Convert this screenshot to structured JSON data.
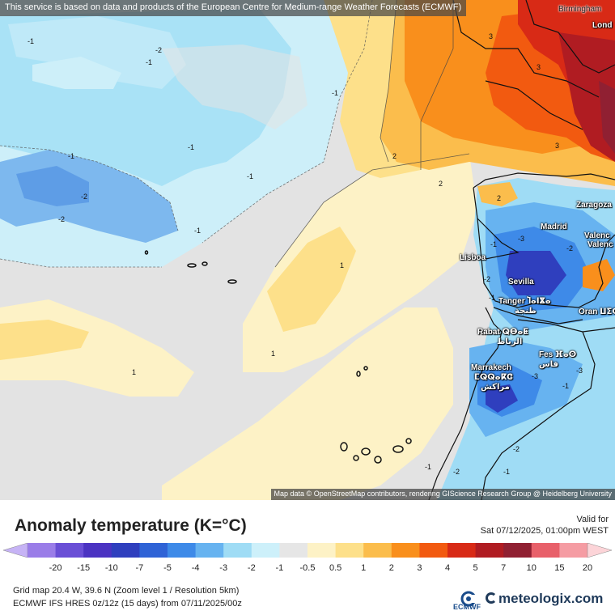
{
  "map": {
    "banner": "This service is based on data and products of the European Centre for Medium-range Weather Forecasts (ECMWF)",
    "attribution": "Map data © OpenStreetMap contributors, rendering GIScience Research Group @ Heidelberg University",
    "cities": [
      {
        "name": "Birmingham",
        "style": "dark"
      },
      {
        "name": "Lond",
        "style": "light"
      },
      {
        "name": "Zaragoza",
        "style": "light"
      },
      {
        "name": "Madrid",
        "style": "light"
      },
      {
        "name": "Valenc",
        "style": "light"
      },
      {
        "name": "Valenc",
        "style": "light"
      },
      {
        "name": "Lisboa",
        "style": "light"
      },
      {
        "name": "Sevilla",
        "style": "light"
      },
      {
        "name": "Tanger Ⴈⴰⵏⴵⴰ",
        "style": "light"
      },
      {
        "name": "طنجة",
        "style": "light"
      },
      {
        "name": "Oran ⵡⵉⵀⵔⴰⵏ",
        "style": "light"
      },
      {
        "name": "Rabat ⵕⴱⴰⵟ",
        "style": "light"
      },
      {
        "name": "الرباط",
        "style": "light"
      },
      {
        "name": "Fes ⴼⴰⵙ",
        "style": "light"
      },
      {
        "name": "فاس",
        "style": "light"
      },
      {
        "name": "Marrakech",
        "style": "light"
      },
      {
        "name": "ⵎⵕⵕⴰⴽⵛ",
        "style": "light"
      },
      {
        "name": "مراكش",
        "style": "light"
      }
    ],
    "contour_labels": [
      "-1",
      "-2",
      "-1",
      "-1",
      "-1",
      "-1",
      "-1",
      "-2",
      "-2",
      "-1",
      "1",
      "1",
      "2",
      "2",
      "3",
      "3",
      "3",
      "2",
      "1",
      "-1",
      "-2",
      "-3",
      "-2",
      "-1",
      "-3",
      "-3",
      "-2",
      "-1",
      "-2",
      "-1",
      "-1"
    ]
  },
  "legend": {
    "title": "Anomaly temperature (K=°C)",
    "valid_label": "Valid for",
    "valid_value": "Sat 07/12/2025, 01:00pm WEST",
    "ticks": [
      "-20",
      "-15",
      "-10",
      "-7",
      "-5",
      "-4",
      "-3",
      "-2",
      "-1",
      "-0.5",
      "0.5",
      "1",
      "2",
      "3",
      "4",
      "5",
      "7",
      "10",
      "15",
      "20"
    ],
    "colors": [
      "#c6b3f5",
      "#9a7de8",
      "#6a4fd6",
      "#4b33c2",
      "#2f3fbe",
      "#2f63d6",
      "#3e8ae8",
      "#67b3f0",
      "#9fdcf5",
      "#cdf0fa",
      "#e6e6e6",
      "#fdf2c6",
      "#fde08a",
      "#fbbd4c",
      "#f98f1c",
      "#f25a10",
      "#d82a16",
      "#b01c22",
      "#902032",
      "#e8606a",
      "#f59ca3",
      "#fcd4d8"
    ]
  },
  "footer": {
    "grid_info": "Grid map 20.4 W, 39.6 N (Zoom level 1 / Resolution 5km)",
    "model_info": "ECMWF IFS HRES 0z/12z (15 days) from 07/11/2025/00z",
    "ecmwf_label": "ECMWF",
    "brand": "meteologix.com"
  }
}
